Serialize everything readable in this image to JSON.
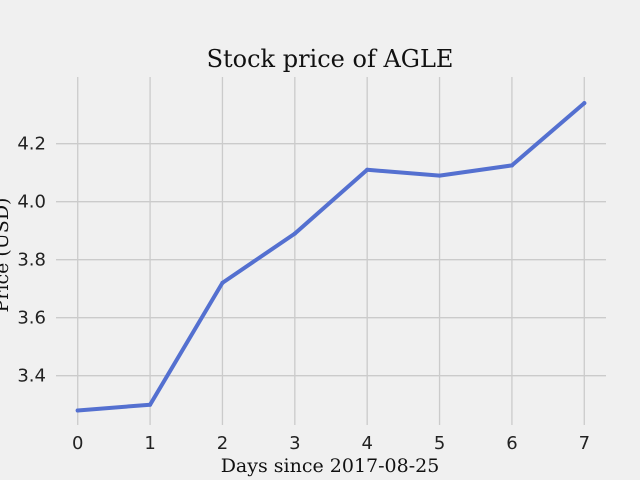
{
  "chart_data": {
    "type": "line",
    "title": "Stock price of AGLE",
    "xlabel": "Days since 2017-08-25",
    "ylabel": "Price (USD)",
    "xlim": [
      -0.3,
      7.3
    ],
    "ylim": [
      3.23,
      4.43
    ],
    "x_ticks": [
      0,
      1,
      2,
      3,
      4,
      5,
      6,
      7
    ],
    "y_ticks": [
      3.4,
      3.6,
      3.8,
      4.0,
      4.2
    ],
    "grid": true,
    "series": [
      {
        "color": "#5470d0",
        "x": [
          0,
          1,
          2,
          3,
          4,
          5,
          6,
          7
        ],
        "y": [
          3.28,
          3.3,
          3.72,
          3.89,
          4.11,
          4.09,
          4.125,
          4.34
        ]
      }
    ]
  }
}
